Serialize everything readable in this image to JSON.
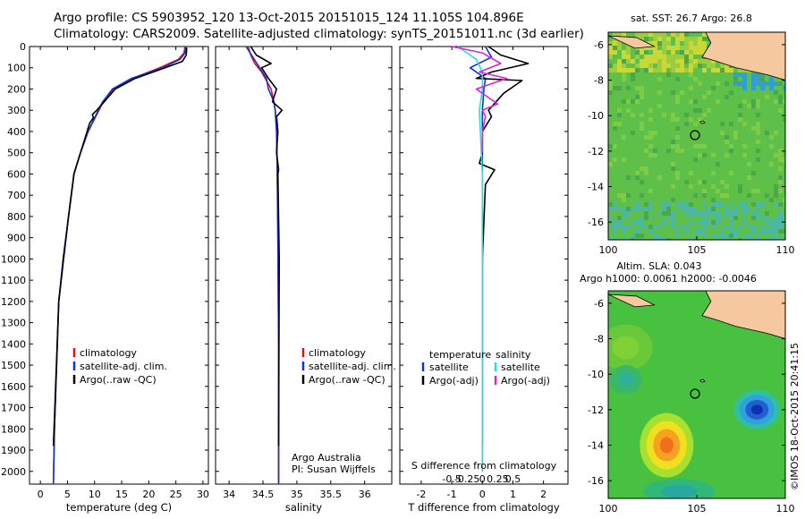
{
  "header": {
    "line1": "Argo profile: CS 5903952_120 13-Oct-2015 20151015_124 11.105S 104.896E",
    "line2": "Climatology: CARS2009. Satellite-adjusted climatology: synTS_20151011.nc (3d earlier)"
  },
  "colors": {
    "red": "#e01010",
    "blue": "#1030e0",
    "black": "#000000",
    "cyan": "#20e0e0",
    "magenta": "#e020e0",
    "land": "#f5c8a0"
  },
  "chart_data": [
    {
      "type": "line",
      "id": "temperature",
      "xlabel": "temperature (deg C)",
      "ylabel": "",
      "xlim": [
        -2,
        31
      ],
      "ylim": [
        2060,
        0
      ],
      "xticks": [
        0,
        5,
        10,
        15,
        20,
        25,
        30
      ],
      "yticks": [
        0,
        100,
        200,
        300,
        400,
        500,
        600,
        700,
        800,
        900,
        1000,
        1100,
        1200,
        1300,
        1400,
        1500,
        1600,
        1700,
        1800,
        1900,
        2000
      ],
      "legend": [
        "climatology",
        "satellite-adj. clim.",
        "Argo(..raw -QC)"
      ],
      "series": [
        {
          "name": "climatology",
          "color": "red",
          "x": [
            26.7,
            26.5,
            25.5,
            22,
            17,
            13.5,
            11.6,
            10.4,
            8.8,
            7.4,
            6.2,
            5.2,
            3.4,
            2.6,
            2.4
          ],
          "y": [
            0,
            30,
            60,
            100,
            150,
            200,
            260,
            320,
            400,
            500,
            600,
            800,
            1200,
            1800,
            2060
          ]
        },
        {
          "name": "satellite-adj. clim.",
          "color": "blue",
          "x": [
            26.8,
            26.7,
            25.8,
            22.6,
            16.8,
            13.3,
            11.5,
            10.3,
            8.8,
            7.4,
            6.2,
            5.2,
            3.4,
            2.6,
            2.4
          ],
          "y": [
            0,
            30,
            60,
            100,
            150,
            200,
            260,
            320,
            400,
            500,
            600,
            800,
            1200,
            1800,
            2060
          ]
        },
        {
          "name": "Argo(..raw -QC)",
          "color": "black",
          "x": [
            27,
            26.9,
            26.2,
            23,
            17.5,
            13.8,
            11.8,
            10.4,
            9.6,
            9.8,
            9.1,
            7.4,
            6.2,
            4.2,
            3.4,
            2.4
          ],
          "y": [
            5,
            40,
            70,
            100,
            150,
            200,
            260,
            300,
            320,
            335,
            360,
            500,
            600,
            1000,
            1200,
            1880
          ]
        }
      ]
    },
    {
      "type": "line",
      "id": "salinity",
      "xlabel": "salinity",
      "ylabel": "",
      "xlim": [
        33.8,
        36.4
      ],
      "ylim": [
        2060,
        0
      ],
      "xticks": [
        34,
        34.5,
        35,
        35.5,
        36
      ],
      "legend": [
        "climatology",
        "satellite-adj. clim.",
        "Argo(..raw -QC)"
      ],
      "annotation": [
        "Argo Australia",
        "PI: Susan Wijffels"
      ],
      "series": [
        {
          "name": "climatology",
          "color": "red",
          "x": [
            34.28,
            34.32,
            34.38,
            34.48,
            34.55,
            34.62,
            34.66,
            34.68,
            34.7,
            34.71,
            34.72,
            34.73,
            34.73
          ],
          "y": [
            0,
            40,
            80,
            120,
            160,
            200,
            260,
            300,
            400,
            600,
            900,
            1400,
            2060
          ]
        },
        {
          "name": "satellite-adj. clim.",
          "color": "blue",
          "x": [
            34.25,
            34.33,
            34.45,
            34.55,
            34.58,
            34.66,
            34.68,
            34.7,
            34.71,
            34.72,
            34.73,
            34.73
          ],
          "y": [
            0,
            40,
            100,
            150,
            200,
            260,
            300,
            400,
            600,
            900,
            1400,
            2060
          ]
        },
        {
          "name": "Argo(..raw -QC)",
          "color": "black",
          "x": [
            34.32,
            34.4,
            34.62,
            34.48,
            34.58,
            34.7,
            34.64,
            34.78,
            34.7,
            34.72,
            34.7,
            34.73,
            34.72,
            34.74,
            34.73
          ],
          "y": [
            0,
            40,
            80,
            100,
            150,
            200,
            260,
            300,
            330,
            400,
            500,
            580,
            600,
            1000,
            1880
          ]
        }
      ]
    },
    {
      "type": "line",
      "id": "difference",
      "xlabel": "T difference from climatology",
      "xlabel_top": "S difference from climatology",
      "xlim": [
        -2.7,
        2.8
      ],
      "ylim": [
        2060,
        0
      ],
      "xticks": [
        -2,
        -1,
        0,
        1,
        2
      ],
      "xticks_top": {
        "values": [
          -1,
          -0.5,
          0,
          0.5,
          1
        ],
        "labels": [
          "-0.5",
          "-0.25",
          "0",
          "0.25",
          "0.5"
        ]
      },
      "legend_groups": [
        {
          "title": "temperature",
          "items": [
            {
              "label": "satellite",
              "color": "blue"
            },
            {
              "label": "Argo(-adj)",
              "color": "black"
            }
          ]
        },
        {
          "title": "salinity",
          "items": [
            {
              "label": "satellite",
              "color": "cyan"
            },
            {
              "label": "Argo(-adj)",
              "color": "magenta"
            }
          ]
        }
      ],
      "series": [
        {
          "name": "temperature satellite",
          "color": "blue",
          "x": [
            0.1,
            0.3,
            -0.4,
            0.1,
            0.05,
            0.0,
            0.0,
            0.0,
            0.0,
            0.0
          ],
          "y": [
            0,
            50,
            100,
            150,
            200,
            300,
            500,
            800,
            1300,
            2000
          ]
        },
        {
          "name": "temperature Argo(-adj)",
          "color": "black",
          "x": [
            0.2,
            0.6,
            1.5,
            0.3,
            -0.2,
            1.3,
            0.7,
            0.2,
            0.3,
            0.0,
            0.0,
            -0.1,
            0.4,
            0.1,
            0.0,
            0.0
          ],
          "y": [
            0,
            40,
            80,
            120,
            150,
            160,
            220,
            300,
            330,
            400,
            500,
            550,
            580,
            650,
            1000,
            1880
          ]
        },
        {
          "name": "salinity satellite",
          "color": "cyan",
          "x": [
            -0.8,
            -0.5,
            -0.2,
            0.0,
            0.0,
            -0.1,
            0.0,
            0.0,
            0.0
          ],
          "y": [
            0,
            30,
            60,
            120,
            200,
            300,
            600,
            1200,
            2000
          ]
        },
        {
          "name": "salinity Argo(-adj)",
          "color": "magenta",
          "x": [
            -1.0,
            0.0,
            0.6,
            -0.1,
            0.8,
            -0.2,
            0.5,
            0.0,
            0.1,
            0.0,
            0.0
          ],
          "y": [
            0,
            30,
            80,
            120,
            150,
            200,
            270,
            300,
            330,
            400,
            500
          ]
        }
      ]
    },
    {
      "type": "heatmap",
      "id": "sst-map",
      "title": "sat. SST: 26.7 Argo: 26.8",
      "xticks": [
        100,
        105,
        110
      ],
      "yticks": [
        -6,
        -8,
        -10,
        -12,
        -14,
        -16
      ],
      "xlim": [
        100,
        110
      ],
      "ylim": [
        -17,
        -5.3
      ],
      "profile_marker": {
        "lon": 104.9,
        "lat": -11.1
      }
    },
    {
      "type": "heatmap",
      "id": "sla-map",
      "title": "Altim. SLA: 0.043",
      "subtitle": "Argo h1000: 0.0061 h2000: -0.0046",
      "xticks": [
        100,
        105,
        110
      ],
      "yticks": [
        -6,
        -8,
        -10,
        -12,
        -14,
        -16
      ],
      "xlim": [
        100,
        110
      ],
      "ylim": [
        -17,
        -5.3
      ],
      "profile_marker": {
        "lon": 104.9,
        "lat": -11.1
      }
    }
  ],
  "credit": "©IMOS 18-Oct-2015 20:41:15"
}
